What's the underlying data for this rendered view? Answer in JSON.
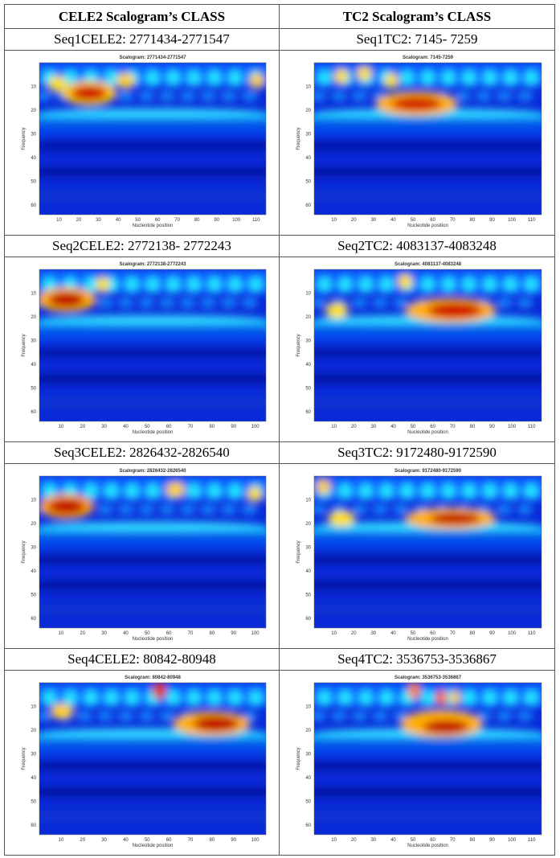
{
  "table": {
    "headers": [
      "CELE2 Scalogram’s CLASS",
      "TC2 Scalogram’s CLASS"
    ],
    "rows": [
      [
        {
          "label": "Seq1CELE2: 2771434-2771547",
          "plot": {
            "title": "Scalogram: 2771434-2771547",
            "ylabel": "Frequency",
            "xlabel": "Nucleotide position",
            "xticks": [
              10,
              20,
              30,
              40,
              50,
              60,
              70,
              80,
              90,
              100,
              110
            ],
            "yticks": [
              10,
              20,
              30,
              40,
              50,
              60
            ]
          }
        },
        {
          "label": "Seq1TC2: 7145- 7259",
          "plot": {
            "title": "Scalogram: 7145-7259",
            "ylabel": "Frequency",
            "xlabel": "Nucleotide position",
            "xticks": [
              10,
              20,
              30,
              40,
              50,
              60,
              70,
              80,
              90,
              100,
              110
            ],
            "yticks": [
              10,
              20,
              30,
              40,
              50,
              60
            ]
          }
        }
      ],
      [
        {
          "label": "Seq2CELE2: 2772138- 2772243",
          "plot": {
            "title": "Scalogram: 2772138-2772243",
            "ylabel": "Frequency",
            "xlabel": "Nucleotide position",
            "xticks": [
              10,
              20,
              30,
              40,
              50,
              60,
              70,
              80,
              90,
              100
            ],
            "yticks": [
              10,
              20,
              30,
              40,
              50,
              60
            ]
          }
        },
        {
          "label": "Seq2TC2: 4083137-4083248",
          "plot": {
            "title": "Scalogram: 4083137-4083248",
            "ylabel": "Frequency",
            "xlabel": "Nucleotide position",
            "xticks": [
              10,
              20,
              30,
              40,
              50,
              60,
              70,
              80,
              90,
              100,
              110
            ],
            "yticks": [
              10,
              20,
              30,
              40,
              50,
              60
            ]
          }
        }
      ],
      [
        {
          "label": "Seq3CELE2: 2826432-2826540",
          "plot": {
            "title": "Scalogram: 2826432-2826540",
            "ylabel": "Frequency",
            "xlabel": "Nucleotide position",
            "xticks": [
              10,
              20,
              30,
              40,
              50,
              60,
              70,
              80,
              90,
              100
            ],
            "yticks": [
              10,
              20,
              30,
              40,
              50,
              60
            ]
          }
        },
        {
          "label": "Seq3TC2: 9172480-9172590",
          "plot": {
            "title": "Scalogram: 9172480-9172590",
            "ylabel": "Frequency",
            "xlabel": "Nucleotide position",
            "xticks": [
              10,
              20,
              30,
              40,
              50,
              60,
              70,
              80,
              90,
              100,
              110
            ],
            "yticks": [
              10,
              20,
              30,
              40,
              50,
              60
            ]
          }
        }
      ],
      [
        {
          "label": "Seq4CELE2: 80842-80948",
          "plot": {
            "title": "Scalogram: 80842-80948",
            "ylabel": "Frequency",
            "xlabel": "Nucleotide position",
            "xticks": [
              10,
              20,
              30,
              40,
              50,
              60,
              70,
              80,
              90,
              100
            ],
            "yticks": [
              10,
              20,
              30,
              40,
              50,
              60
            ]
          }
        },
        {
          "label": "Seq4TC2: 3536753-3536867",
          "plot": {
            "title": "Scalogram: 3536753-3536867",
            "ylabel": "Frequency",
            "xlabel": "Nucleotide position",
            "xticks": [
              10,
              20,
              30,
              40,
              50,
              60,
              70,
              80,
              90,
              100,
              110
            ],
            "yticks": [
              10,
              20,
              30,
              40,
              50,
              60
            ]
          }
        }
      ]
    ]
  }
}
